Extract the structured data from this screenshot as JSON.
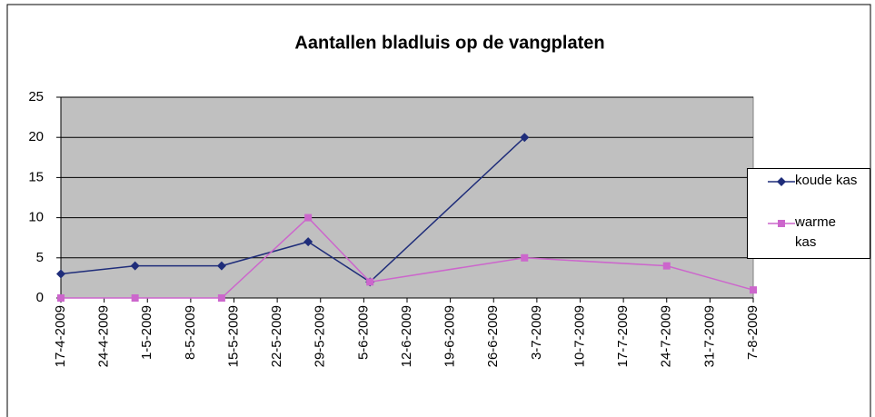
{
  "chart_data": {
    "type": "line",
    "title": "Aantallen bladluis op de vangplaten",
    "x": [
      "17-4-2009",
      "29-4-2009",
      "13-5-2009",
      "27-5-2009",
      "6-6-2009",
      "1-7-2009",
      "24-7-2009",
      "7-8-2009"
    ],
    "series": [
      {
        "name": "koude kas",
        "color": "#1f2d7a",
        "marker": "diamond",
        "values": [
          3,
          4,
          4,
          7,
          2,
          20,
          null,
          null
        ]
      },
      {
        "name": "warme kas",
        "color": "#cc66cc",
        "marker": "square",
        "values": [
          0,
          0,
          0,
          10,
          2,
          5,
          4,
          1
        ]
      }
    ],
    "xlim": [
      "17-4-2009",
      "7-8-2009"
    ],
    "xticks": [
      "17-4-2009",
      "24-4-2009",
      "1-5-2009",
      "8-5-2009",
      "15-5-2009",
      "22-5-2009",
      "29-5-2009",
      "5-6-2009",
      "12-6-2009",
      "19-6-2009",
      "26-6-2009",
      "3-7-2009",
      "10-7-2009",
      "17-7-2009",
      "24-7-2009",
      "31-7-2009",
      "7-8-2009"
    ],
    "ylim": [
      0,
      25
    ],
    "yticks": [
      0,
      5,
      10,
      15,
      20,
      25
    ],
    "grid": true
  }
}
